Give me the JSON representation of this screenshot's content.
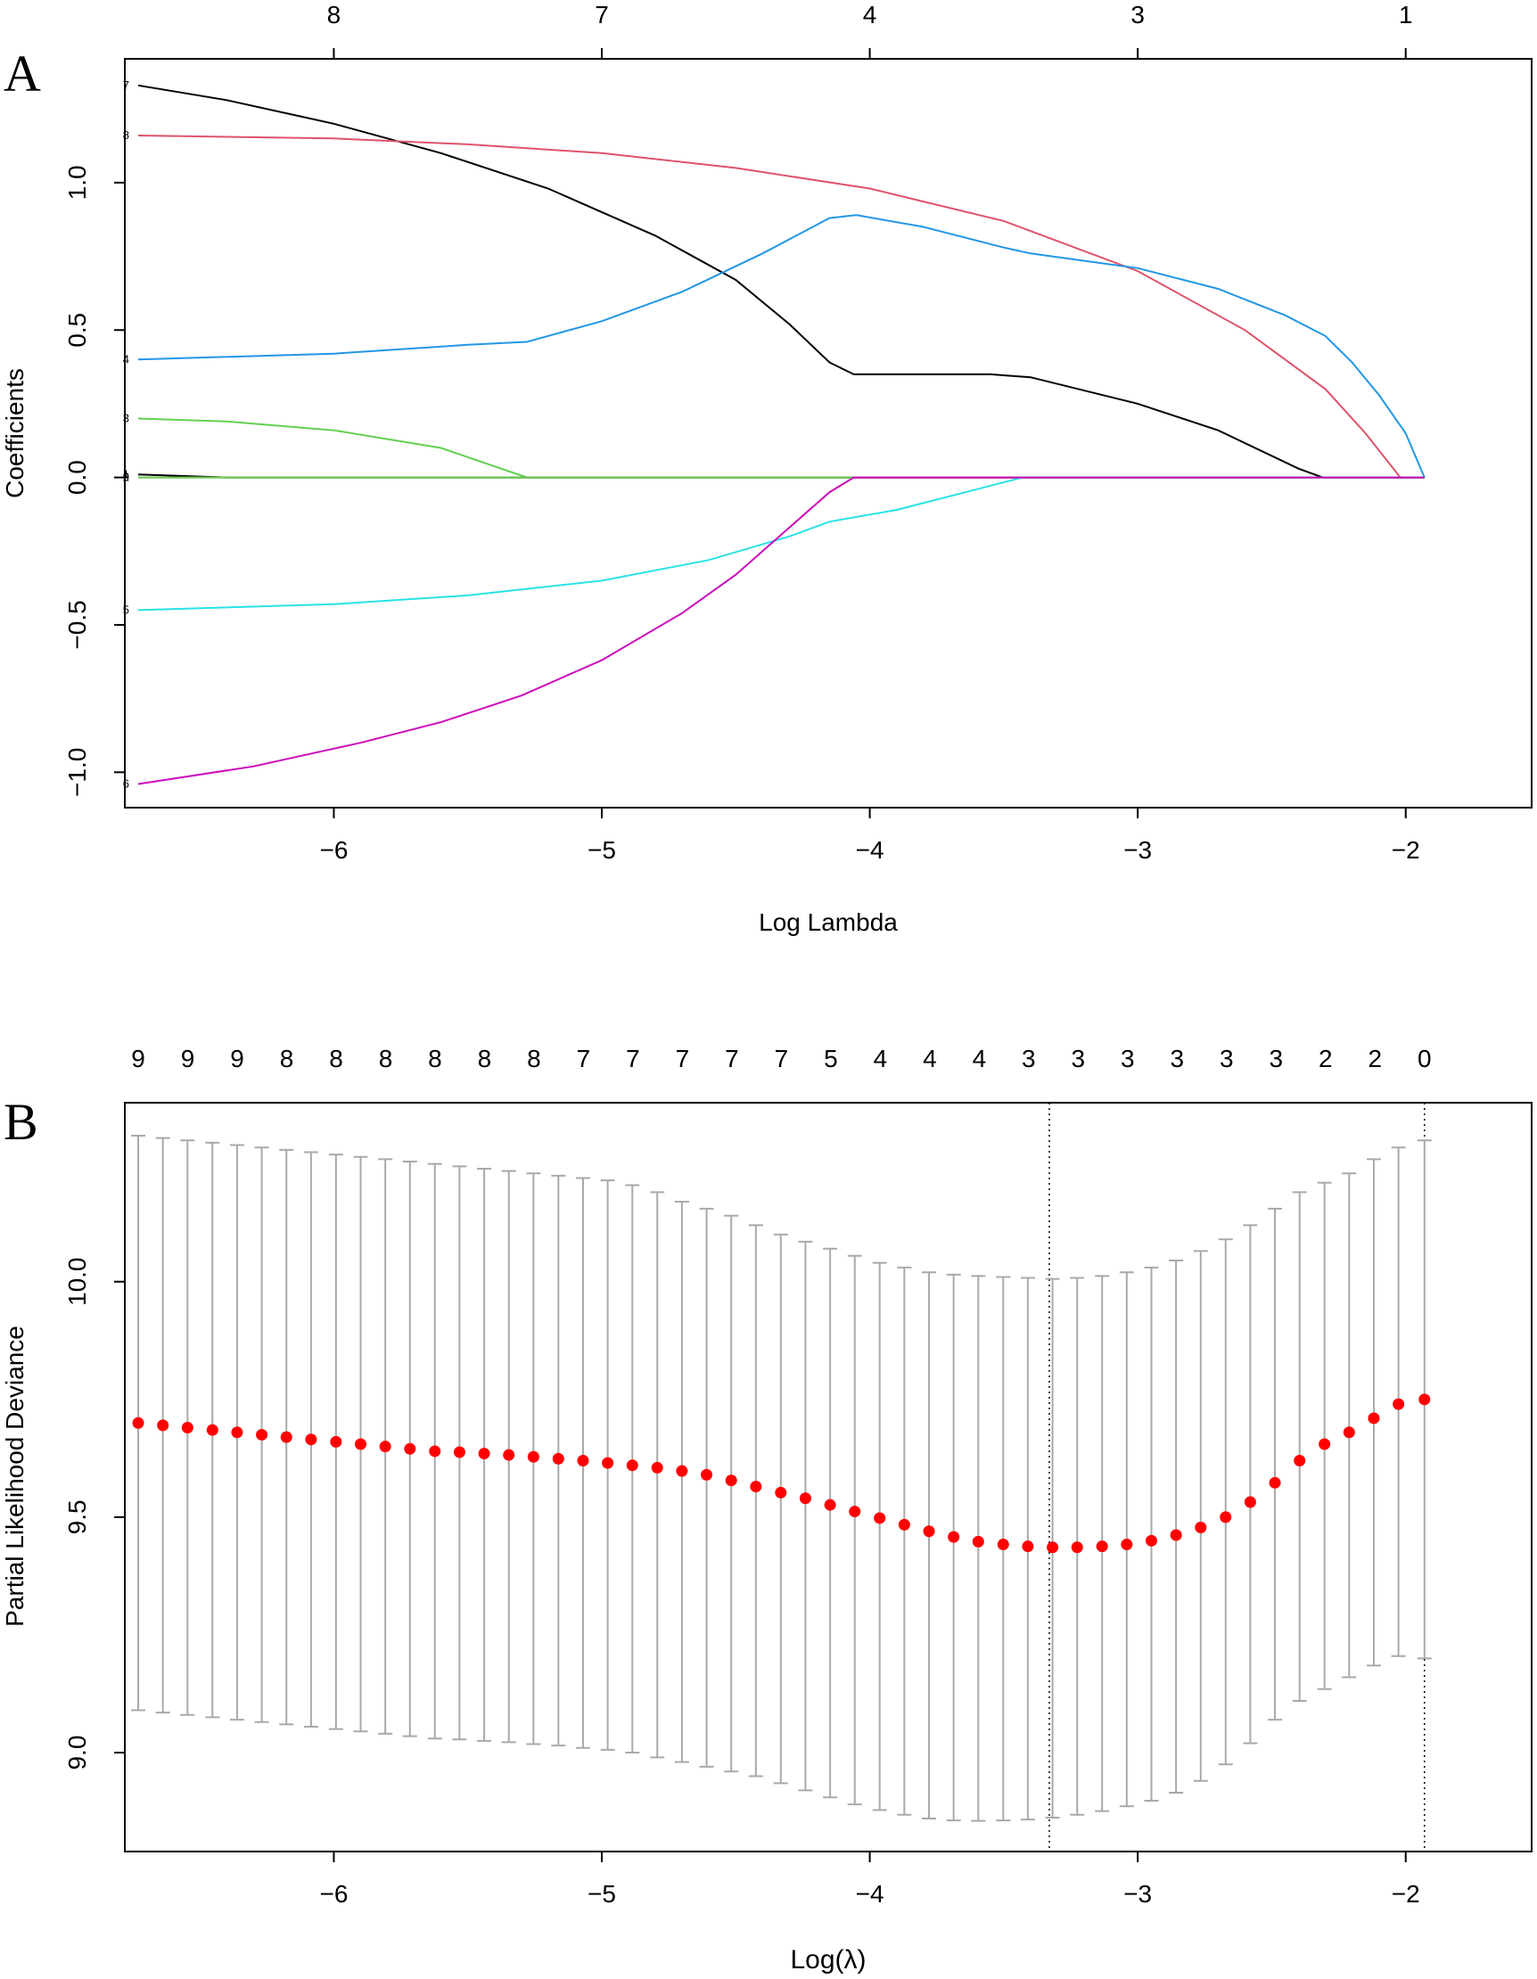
{
  "chart_data": [
    {
      "type": "line",
      "panel_label": "A",
      "xlabel": "Log Lambda",
      "ylabel": "Coefficients",
      "xlim": [
        -6.78,
        -1.53
      ],
      "ylim": [
        -1.12,
        1.42
      ],
      "x_ticks": [
        -6,
        -5,
        -4,
        -3,
        -2
      ],
      "x_tick_labels": [
        "−6",
        "−5",
        "−4",
        "−3",
        "−2"
      ],
      "y_ticks": [
        -1.0,
        -0.5,
        0.0,
        0.5,
        1.0
      ],
      "y_tick_labels": [
        "−1.0",
        "−0.5",
        "0.0",
        "0.5",
        "1.0"
      ],
      "top_axis": {
        "positions": [
          -6,
          -5,
          -4,
          -3,
          -2
        ],
        "labels": [
          "8",
          "7",
          "4",
          "3",
          "1"
        ]
      },
      "series": [
        {
          "name": "7",
          "color": "#000000",
          "points": [
            [
              -6.73,
              1.33
            ],
            [
              -6.4,
              1.28
            ],
            [
              -6.0,
              1.2
            ],
            [
              -5.6,
              1.1
            ],
            [
              -5.2,
              0.98
            ],
            [
              -4.8,
              0.82
            ],
            [
              -4.5,
              0.67
            ],
            [
              -4.3,
              0.52
            ],
            [
              -4.15,
              0.39
            ],
            [
              -4.06,
              0.35
            ],
            [
              -3.8,
              0.35
            ],
            [
              -3.55,
              0.35
            ],
            [
              -3.4,
              0.34
            ],
            [
              -3.0,
              0.25
            ],
            [
              -2.7,
              0.16
            ],
            [
              -2.4,
              0.03
            ],
            [
              -2.31,
              0.0
            ],
            [
              -1.93,
              0.0
            ]
          ]
        },
        {
          "name": "8",
          "color": "#DF536B",
          "points": [
            [
              -6.73,
              1.16
            ],
            [
              -6.0,
              1.15
            ],
            [
              -5.5,
              1.13
            ],
            [
              -5.0,
              1.1
            ],
            [
              -4.5,
              1.05
            ],
            [
              -4.0,
              0.98
            ],
            [
              -3.5,
              0.87
            ],
            [
              -3.0,
              0.7
            ],
            [
              -2.6,
              0.5
            ],
            [
              -2.3,
              0.3
            ],
            [
              -2.15,
              0.15
            ],
            [
              -2.02,
              0.0
            ],
            [
              -1.93,
              0.0
            ]
          ]
        },
        {
          "name": "4",
          "color": "#2297E6",
          "points": [
            [
              -6.73,
              0.4
            ],
            [
              -6.0,
              0.42
            ],
            [
              -5.5,
              0.45
            ],
            [
              -5.28,
              0.46
            ],
            [
              -5.0,
              0.53
            ],
            [
              -4.7,
              0.63
            ],
            [
              -4.4,
              0.76
            ],
            [
              -4.15,
              0.88
            ],
            [
              -4.05,
              0.89
            ],
            [
              -3.8,
              0.85
            ],
            [
              -3.5,
              0.78
            ],
            [
              -3.4,
              0.76
            ],
            [
              -3.0,
              0.71
            ],
            [
              -2.7,
              0.64
            ],
            [
              -2.45,
              0.55
            ],
            [
              -2.3,
              0.48
            ],
            [
              -2.2,
              0.39
            ],
            [
              -2.1,
              0.28
            ],
            [
              -2.0,
              0.15
            ],
            [
              -1.93,
              0.0
            ]
          ]
        },
        {
          "name": "3",
          "color": "#61D04F",
          "points": [
            [
              -6.73,
              0.2
            ],
            [
              -6.4,
              0.19
            ],
            [
              -6.0,
              0.16
            ],
            [
              -5.6,
              0.1
            ],
            [
              -5.28,
              0.0
            ],
            [
              -1.93,
              0.0
            ]
          ]
        },
        {
          "name": "1",
          "color": "#000000",
          "points": [
            [
              -6.73,
              0.01
            ],
            [
              -6.4,
              0.0
            ],
            [
              -1.93,
              0.0
            ]
          ]
        },
        {
          "name": "2",
          "color": "#DF536B",
          "points": [
            [
              -6.73,
              0.0
            ],
            [
              -1.93,
              0.0
            ]
          ]
        },
        {
          "name": "9",
          "color": "#61D04F",
          "points": [
            [
              -6.73,
              0.0
            ],
            [
              -1.93,
              0.0
            ]
          ]
        },
        {
          "name": "5",
          "color": "#28E2E5",
          "points": [
            [
              -6.73,
              -0.45
            ],
            [
              -6.0,
              -0.43
            ],
            [
              -5.5,
              -0.4
            ],
            [
              -5.0,
              -0.35
            ],
            [
              -4.6,
              -0.28
            ],
            [
              -4.3,
              -0.2
            ],
            [
              -4.15,
              -0.15
            ],
            [
              -3.9,
              -0.11
            ],
            [
              -3.6,
              -0.04
            ],
            [
              -3.43,
              0.0
            ],
            [
              -1.93,
              0.0
            ]
          ]
        },
        {
          "name": "6",
          "color": "#CD0BBC",
          "points": [
            [
              -6.73,
              -1.04
            ],
            [
              -6.3,
              -0.98
            ],
            [
              -5.9,
              -0.9
            ],
            [
              -5.6,
              -0.83
            ],
            [
              -5.3,
              -0.74
            ],
            [
              -5.0,
              -0.62
            ],
            [
              -4.7,
              -0.46
            ],
            [
              -4.5,
              -0.33
            ],
            [
              -4.3,
              -0.17
            ],
            [
              -4.15,
              -0.05
            ],
            [
              -4.06,
              0.0
            ],
            [
              -1.93,
              0.0
            ]
          ]
        }
      ],
      "line_end_labels": [
        "7",
        "8",
        "4",
        "3",
        "1",
        "2",
        "9",
        "5",
        "6"
      ]
    },
    {
      "type": "scatter",
      "subtype": "errorbar",
      "panel_label": "B",
      "xlabel": "Log(λ)",
      "ylabel": "Partial Likelihood Deviance",
      "xlim": [
        -6.78,
        -1.53
      ],
      "ylim": [
        8.79,
        10.38
      ],
      "x_ticks": [
        -6,
        -5,
        -4,
        -3,
        -2
      ],
      "x_tick_labels": [
        "−6",
        "−5",
        "−4",
        "−3",
        "−2"
      ],
      "y_ticks": [
        9.0,
        9.5,
        10.0
      ],
      "y_tick_labels": [
        "9.0",
        "9.5",
        "10.0"
      ],
      "top_axis_labels": [
        "9",
        "9",
        "9",
        "8",
        "8",
        "8",
        "8",
        "8",
        "8",
        "7",
        "7",
        "7",
        "7",
        "7",
        "5",
        "4",
        "4",
        "4",
        "3",
        "3",
        "3",
        "3",
        "3",
        "3",
        "2",
        "2",
        "0"
      ],
      "top_axis_x_start": -6.73,
      "top_axis_x_end": -1.93,
      "vlines": [
        -3.33,
        -1.93
      ],
      "x": [
        -6.73,
        -6.638,
        -6.546,
        -6.453,
        -6.361,
        -6.269,
        -6.177,
        -6.085,
        -5.992,
        -5.9,
        -5.808,
        -5.716,
        -5.623,
        -5.531,
        -5.439,
        -5.347,
        -5.255,
        -5.162,
        -5.07,
        -4.978,
        -4.886,
        -4.793,
        -4.701,
        -4.609,
        -4.517,
        -4.425,
        -4.332,
        -4.24,
        -4.148,
        -4.056,
        -3.963,
        -3.871,
        -3.779,
        -3.687,
        -3.595,
        -3.502,
        -3.41,
        -3.318,
        -3.226,
        -3.133,
        -3.041,
        -2.949,
        -2.857,
        -2.765,
        -2.672,
        -2.58,
        -2.488,
        -2.396,
        -2.303,
        -2.211,
        -2.119,
        -2.027,
        -1.93
      ],
      "mean": [
        9.7,
        9.695,
        9.69,
        9.685,
        9.68,
        9.675,
        9.67,
        9.665,
        9.66,
        9.655,
        9.65,
        9.645,
        9.64,
        9.638,
        9.635,
        9.632,
        9.628,
        9.624,
        9.62,
        9.615,
        9.61,
        9.605,
        9.598,
        9.59,
        9.578,
        9.565,
        9.552,
        9.54,
        9.526,
        9.512,
        9.498,
        9.484,
        9.47,
        9.458,
        9.448,
        9.442,
        9.438,
        9.436,
        9.436,
        9.438,
        9.442,
        9.45,
        9.462,
        9.478,
        9.5,
        9.532,
        9.573,
        9.62,
        9.655,
        9.68,
        9.71,
        9.74,
        9.75
      ],
      "upper": [
        10.31,
        10.305,
        10.3,
        10.295,
        10.29,
        10.285,
        10.28,
        10.275,
        10.27,
        10.265,
        10.26,
        10.255,
        10.25,
        10.245,
        10.24,
        10.235,
        10.23,
        10.225,
        10.22,
        10.215,
        10.205,
        10.19,
        10.17,
        10.155,
        10.14,
        10.12,
        10.1,
        10.085,
        10.07,
        10.055,
        10.04,
        10.03,
        10.02,
        10.015,
        10.012,
        10.01,
        10.008,
        10.006,
        10.008,
        10.012,
        10.02,
        10.03,
        10.045,
        10.065,
        10.09,
        10.12,
        10.155,
        10.19,
        10.21,
        10.23,
        10.26,
        10.285,
        10.3
      ],
      "lower": [
        9.09,
        9.085,
        9.08,
        9.075,
        9.07,
        9.065,
        9.06,
        9.055,
        9.05,
        9.045,
        9.04,
        9.035,
        9.03,
        9.028,
        9.025,
        9.022,
        9.018,
        9.015,
        9.01,
        9.006,
        9.0,
        8.99,
        8.98,
        8.97,
        8.96,
        8.95,
        8.935,
        8.92,
        8.905,
        8.89,
        8.878,
        8.868,
        8.86,
        8.856,
        8.855,
        8.856,
        8.858,
        8.862,
        8.868,
        8.876,
        8.886,
        8.898,
        8.915,
        8.94,
        8.975,
        9.02,
        9.07,
        9.11,
        9.135,
        9.16,
        9.185,
        9.205,
        9.2
      ]
    }
  ]
}
